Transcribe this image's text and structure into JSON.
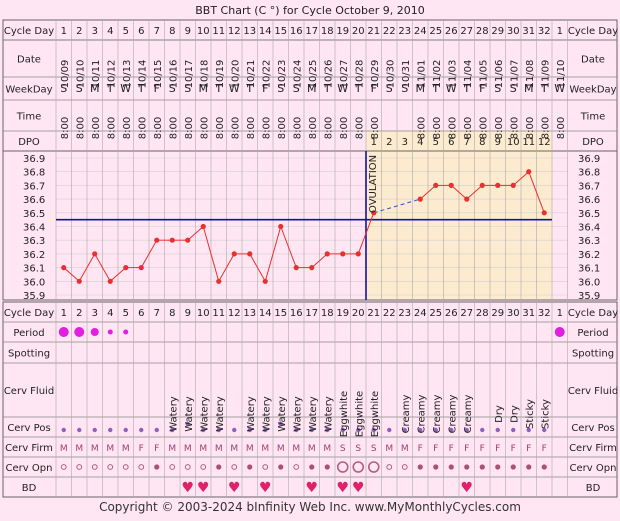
{
  "title": "BBT Chart (C °) for Cycle October 9, 2010",
  "footer": "Copyright © 2003-2024 bInfinity Web Inc.     www.MyMonthlyCycles.com",
  "row_labels": {
    "cycle_day": "Cycle Day",
    "date": "Date",
    "weekday": "WeekDay",
    "time": "Time",
    "dpo": "DPO",
    "period": "Period",
    "spotting": "Spotting",
    "cerv_fluid": "Cerv Fluid",
    "cerv_pos": "Cerv Pos",
    "cerv_firm": "Cerv Firm",
    "cerv_opn": "Cerv Opn",
    "bd": "BD"
  },
  "ovulation_label": "OVULATION",
  "colors": {
    "page_bg": "#ffe6f2",
    "grid_bg": "#ffffff",
    "post_ov_bg": "#fdebd0",
    "temp_line": "#e83030",
    "coverline": "#1010b0",
    "ovulation_line": "#1010b0",
    "period_dot": "#e020e0",
    "pos_dot": "#9060c0",
    "heart": "#e0206a"
  },
  "chart_data": {
    "type": "line",
    "title": "BBT Chart (C °) for Cycle October 9, 2010",
    "cycle_days": [
      "1",
      "2",
      "3",
      "4",
      "5",
      "6",
      "7",
      "8",
      "9",
      "10",
      "11",
      "12",
      "13",
      "14",
      "15",
      "16",
      "17",
      "18",
      "19",
      "20",
      "21",
      "22",
      "23",
      "24",
      "25",
      "26",
      "27",
      "28",
      "29",
      "30",
      "31",
      "32",
      "1"
    ],
    "dates": [
      "10/09",
      "10/10",
      "10/11",
      "10/12",
      "10/13",
      "10/14",
      "10/15",
      "10/16",
      "10/17",
      "10/18",
      "10/19",
      "10/20",
      "10/21",
      "10/22",
      "10/23",
      "10/24",
      "10/25",
      "10/26",
      "10/27",
      "10/28",
      "10/29",
      "10/30",
      "10/31",
      "11/01",
      "11/02",
      "11/03",
      "11/04",
      "11/05",
      "11/06",
      "11/07",
      "11/08",
      "11/09",
      "11/10"
    ],
    "weekdays": [
      "S",
      "S",
      "M",
      "T",
      "W",
      "T",
      "F",
      "S",
      "S",
      "M",
      "T",
      "W",
      "T",
      "F",
      "S",
      "S",
      "M",
      "T",
      "W",
      "T",
      "F",
      "S",
      "S",
      "M",
      "T",
      "W",
      "T",
      "F",
      "S",
      "S",
      "M",
      "T",
      "W"
    ],
    "times": [
      "8:00",
      "8:00",
      "8:00",
      "8:00",
      "8:00",
      "8:00",
      "8:00",
      "8:00",
      "8:00",
      "8:00",
      "8:00",
      "8:00",
      "8:00",
      "8:00",
      "8:00",
      "8:00",
      "8:00",
      "8:00",
      "8:00",
      "8:00",
      "8:00",
      "",
      "",
      "8:00",
      "8:00",
      "8:00",
      "8:00",
      "8:00",
      "8:00",
      "8:00",
      "8:00",
      "8:00",
      "8:00"
    ],
    "dpo": [
      "",
      "",
      "",
      "",
      "",
      "",
      "",
      "",
      "",
      "",
      "",
      "",
      "",
      "",
      "",
      "",
      "",
      "",
      "",
      "",
      "1",
      "2",
      "3",
      "4",
      "5",
      "6",
      "7",
      "8",
      "9",
      "10",
      "11",
      "12",
      ""
    ],
    "temps": [
      36.1,
      36.0,
      36.2,
      36.0,
      36.1,
      36.1,
      36.3,
      36.3,
      36.3,
      36.4,
      36.0,
      36.2,
      36.2,
      36.0,
      36.4,
      36.1,
      36.1,
      36.2,
      36.2,
      36.2,
      36.5,
      null,
      null,
      36.6,
      36.7,
      36.7,
      36.6,
      36.7,
      36.7,
      36.7,
      36.8,
      36.5,
      null
    ],
    "y_ticks": [
      "36.9",
      "36.8",
      "36.7",
      "36.6",
      "36.5",
      "36.4",
      "36.3",
      "36.2",
      "36.1",
      "36.0",
      "35.9"
    ],
    "ylim": [
      35.9,
      36.9
    ],
    "coverline": 36.45,
    "ovulation_after_day_index": 19,
    "period": [
      "heavy",
      "heavy",
      "medium",
      "light",
      "light",
      "",
      "",
      "",
      "",
      "",
      "",
      "",
      "",
      "",
      "",
      "",
      "",
      "",
      "",
      "",
      "",
      "",
      "",
      "",
      "",
      "",
      "",
      "",
      "",
      "",
      "",
      "",
      "heavy"
    ],
    "cerv_fluid": [
      "",
      "",
      "",
      "",
      "",
      "",
      "",
      "Watery",
      "Watery",
      "Watery",
      "Watery",
      "",
      "Watery",
      "Watery",
      "Watery",
      "Watery",
      "Watery",
      "Watery",
      "Eggwhite",
      "Eggwhite",
      "Eggwhite",
      "",
      "Creamy",
      "Creamy",
      "Creamy",
      "Creamy",
      "Creamy",
      "",
      "Dry",
      "Dry",
      "Sticky",
      "Sticky",
      ""
    ],
    "cerv_pos": [
      "low",
      "low",
      "low",
      "low",
      "low",
      "low",
      "low",
      "low",
      "high",
      "low",
      "low",
      "low",
      "low",
      "low",
      "high",
      "low",
      "low",
      "low",
      "low",
      "low",
      "low",
      "low",
      "low",
      "low",
      "low",
      "low",
      "low",
      "low",
      "low",
      "low",
      "low",
      "low",
      ""
    ],
    "cerv_firm": [
      "M",
      "M",
      "M",
      "M",
      "M",
      "F",
      "F",
      "M",
      "M",
      "M",
      "M",
      "M",
      "M",
      "M",
      "M",
      "M",
      "M",
      "M",
      "S",
      "S",
      "S",
      "M",
      "M",
      "F",
      "F",
      "F",
      "F",
      "F",
      "F",
      "F",
      "F",
      "F",
      ""
    ],
    "cerv_opn": [
      "o",
      "o",
      "o",
      "o",
      "o",
      "o",
      "m",
      "o",
      "o",
      "o",
      "m",
      "o",
      "m",
      "o",
      "m",
      "o",
      "m",
      "m",
      "big",
      "big",
      "big",
      "o",
      "o",
      "m",
      "m",
      "m",
      "m",
      "m",
      "m",
      "m",
      "m",
      "m",
      ""
    ],
    "bd": [
      false,
      false,
      false,
      false,
      false,
      false,
      false,
      false,
      true,
      true,
      false,
      true,
      false,
      true,
      false,
      false,
      true,
      false,
      true,
      true,
      false,
      false,
      false,
      false,
      false,
      false,
      true,
      false,
      false,
      false,
      false,
      false,
      false
    ]
  }
}
